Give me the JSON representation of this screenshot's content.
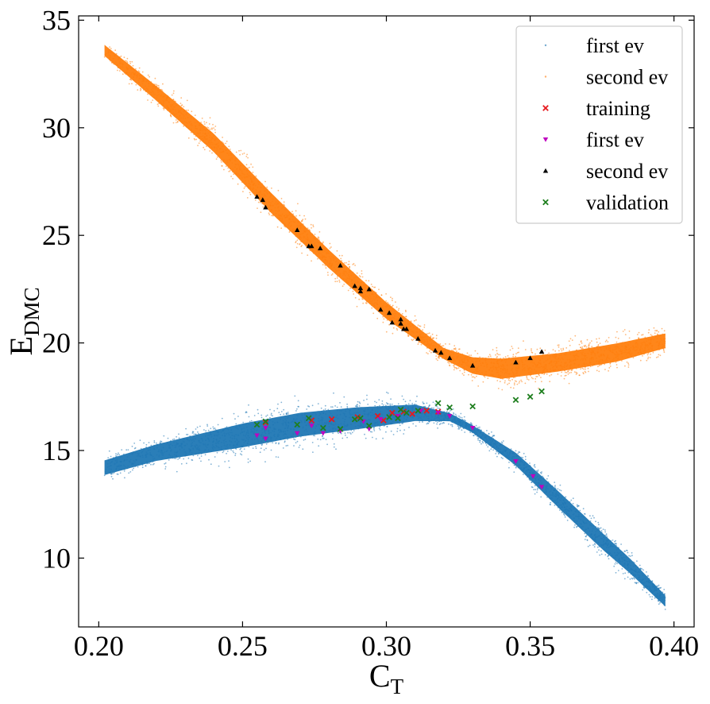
{
  "chart_data": {
    "type": "scatter",
    "title": "",
    "xlabel": {
      "main": "C",
      "sub": "T"
    },
    "ylabel": {
      "main": "E",
      "sub": "DMC"
    },
    "xlim": [
      0.193,
      0.407
    ],
    "ylim": [
      6.8,
      35.2
    ],
    "xticks": [
      0.2,
      0.25,
      0.3,
      0.35,
      0.4
    ],
    "xtick_labels": [
      "0.20",
      "0.25",
      "0.30",
      "0.35",
      "0.40"
    ],
    "yticks": [
      10,
      15,
      20,
      25,
      30,
      35
    ],
    "ytick_labels": [
      "10",
      "15",
      "20",
      "25",
      "30",
      "35"
    ],
    "grid": false,
    "legend_position": "top-right",
    "series": [
      {
        "name": "first ev",
        "kind": "band",
        "color": "#1f77b4",
        "x_range": [
          0.202,
          0.397
        ],
        "centerline": [
          [
            0.202,
            14.2
          ],
          [
            0.22,
            14.9
          ],
          [
            0.25,
            15.7
          ],
          [
            0.27,
            16.2
          ],
          [
            0.29,
            16.5
          ],
          [
            0.31,
            16.75
          ],
          [
            0.322,
            16.55
          ],
          [
            0.33,
            16.0
          ],
          [
            0.345,
            14.6
          ],
          [
            0.36,
            12.7
          ],
          [
            0.375,
            10.8
          ],
          [
            0.385,
            9.6
          ],
          [
            0.397,
            8.0
          ]
        ],
        "halfwidth": [
          [
            0.202,
            0.4
          ],
          [
            0.22,
            0.45
          ],
          [
            0.25,
            0.65
          ],
          [
            0.27,
            0.65
          ],
          [
            0.29,
            0.6
          ],
          [
            0.31,
            0.45
          ],
          [
            0.322,
            0.22
          ],
          [
            0.33,
            0.2
          ],
          [
            0.345,
            0.35
          ],
          [
            0.36,
            0.45
          ],
          [
            0.375,
            0.45
          ],
          [
            0.385,
            0.4
          ],
          [
            0.397,
            0.3
          ]
        ]
      },
      {
        "name": "second ev",
        "kind": "band",
        "color": "#ff7f0e",
        "x_range": [
          0.202,
          0.397
        ],
        "centerline": [
          [
            0.202,
            33.6
          ],
          [
            0.22,
            31.6
          ],
          [
            0.24,
            29.3
          ],
          [
            0.26,
            26.5
          ],
          [
            0.28,
            23.9
          ],
          [
            0.3,
            21.5
          ],
          [
            0.32,
            19.5
          ],
          [
            0.33,
            18.95
          ],
          [
            0.34,
            18.8
          ],
          [
            0.36,
            19.1
          ],
          [
            0.38,
            19.55
          ],
          [
            0.397,
            20.1
          ]
        ],
        "halfwidth": [
          [
            0.202,
            0.3
          ],
          [
            0.22,
            0.4
          ],
          [
            0.24,
            0.5
          ],
          [
            0.26,
            0.55
          ],
          [
            0.28,
            0.5
          ],
          [
            0.3,
            0.45
          ],
          [
            0.32,
            0.3
          ],
          [
            0.33,
            0.45
          ],
          [
            0.34,
            0.55
          ],
          [
            0.36,
            0.5
          ],
          [
            0.38,
            0.5
          ],
          [
            0.397,
            0.4
          ]
        ]
      },
      {
        "name": "training",
        "kind": "points",
        "marker": "x",
        "color": "#e6191e",
        "points": [
          [
            0.258,
            16.3
          ],
          [
            0.274,
            16.4
          ],
          [
            0.281,
            16.45
          ],
          [
            0.29,
            16.55
          ],
          [
            0.297,
            16.6
          ],
          [
            0.302,
            16.75
          ],
          [
            0.306,
            16.8
          ],
          [
            0.309,
            16.7
          ],
          [
            0.314,
            16.85
          ],
          [
            0.318,
            16.8
          ],
          [
            0.299,
            16.4
          ]
        ]
      },
      {
        "name": "first ev",
        "kind": "points",
        "marker": "triangle-down",
        "color": "#bf00bf",
        "points": [
          [
            0.255,
            15.7
          ],
          [
            0.258,
            15.55
          ],
          [
            0.258,
            16.05
          ],
          [
            0.269,
            15.8
          ],
          [
            0.274,
            16.15
          ],
          [
            0.278,
            15.8
          ],
          [
            0.284,
            15.9
          ],
          [
            0.292,
            16.35
          ],
          [
            0.294,
            16.0
          ],
          [
            0.298,
            16.45
          ],
          [
            0.304,
            16.6
          ],
          [
            0.312,
            16.85
          ],
          [
            0.318,
            16.75
          ],
          [
            0.322,
            16.6
          ],
          [
            0.33,
            16.05
          ],
          [
            0.345,
            14.5
          ],
          [
            0.351,
            13.8
          ],
          [
            0.354,
            13.3
          ]
        ]
      },
      {
        "name": "second ev",
        "kind": "points",
        "marker": "triangle-up",
        "color": "#000000",
        "points": [
          [
            0.255,
            26.8
          ],
          [
            0.257,
            26.65
          ],
          [
            0.258,
            26.3
          ],
          [
            0.269,
            25.25
          ],
          [
            0.273,
            24.5
          ],
          [
            0.274,
            24.5
          ],
          [
            0.277,
            24.4
          ],
          [
            0.284,
            23.6
          ],
          [
            0.289,
            22.65
          ],
          [
            0.291,
            22.55
          ],
          [
            0.291,
            22.4
          ],
          [
            0.294,
            22.5
          ],
          [
            0.298,
            21.55
          ],
          [
            0.301,
            21.4
          ],
          [
            0.302,
            20.95
          ],
          [
            0.305,
            21.1
          ],
          [
            0.305,
            20.9
          ],
          [
            0.306,
            20.65
          ],
          [
            0.307,
            20.65
          ],
          [
            0.311,
            20.2
          ],
          [
            0.317,
            19.65
          ],
          [
            0.319,
            19.55
          ],
          [
            0.322,
            19.3
          ],
          [
            0.33,
            18.95
          ],
          [
            0.345,
            19.1
          ],
          [
            0.35,
            19.3
          ],
          [
            0.354,
            19.6
          ]
        ]
      },
      {
        "name": "validation",
        "kind": "points",
        "marker": "x",
        "color": "#1f7f1f",
        "points": [
          [
            0.255,
            16.2
          ],
          [
            0.258,
            16.35
          ],
          [
            0.269,
            16.2
          ],
          [
            0.273,
            16.5
          ],
          [
            0.278,
            16.05
          ],
          [
            0.284,
            16.0
          ],
          [
            0.289,
            16.45
          ],
          [
            0.291,
            16.5
          ],
          [
            0.294,
            16.15
          ],
          [
            0.301,
            16.55
          ],
          [
            0.304,
            16.5
          ],
          [
            0.305,
            16.9
          ],
          [
            0.307,
            16.75
          ],
          [
            0.311,
            16.85
          ],
          [
            0.318,
            17.2
          ],
          [
            0.322,
            17.0
          ],
          [
            0.33,
            17.05
          ],
          [
            0.345,
            17.35
          ],
          [
            0.35,
            17.5
          ],
          [
            0.354,
            17.75
          ]
        ]
      }
    ]
  }
}
